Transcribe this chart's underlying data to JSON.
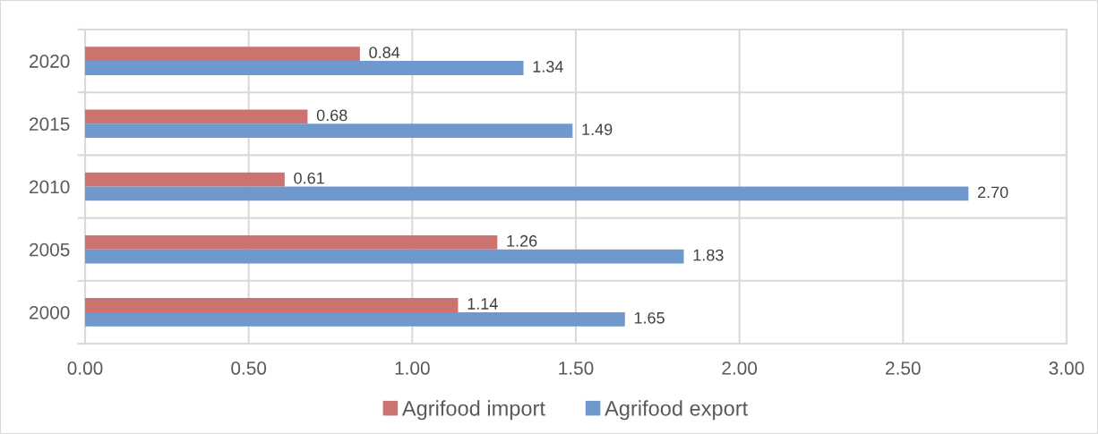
{
  "chart_data": {
    "type": "bar",
    "orientation": "horizontal",
    "categories": [
      "2020",
      "2015",
      "2010",
      "2005",
      "2000"
    ],
    "series": [
      {
        "name": "Agrifood import",
        "color": "#cc726f",
        "values": [
          0.84,
          0.68,
          0.61,
          1.26,
          1.14
        ],
        "value_labels": [
          "0.84",
          "0.68",
          "0.61",
          "1.26",
          "1.14"
        ]
      },
      {
        "name": "Agrifood export",
        "color": "#6f99cc",
        "values": [
          1.34,
          1.49,
          2.7,
          1.83,
          1.65
        ],
        "value_labels": [
          "1.34",
          "1.49",
          "2.70",
          "1.83",
          "1.65"
        ]
      }
    ],
    "xlim": [
      0,
      3
    ],
    "xticks": [
      {
        "value": 0,
        "label": "0.00"
      },
      {
        "value": 0.5,
        "label": "0.50"
      },
      {
        "value": 1,
        "label": "1.00"
      },
      {
        "value": 1.5,
        "label": "1.50"
      },
      {
        "value": 2,
        "label": "2.00"
      },
      {
        "value": 2.5,
        "label": "2.50"
      },
      {
        "value": 3,
        "label": "3.00"
      }
    ],
    "grid": true,
    "legend": "bottom"
  }
}
